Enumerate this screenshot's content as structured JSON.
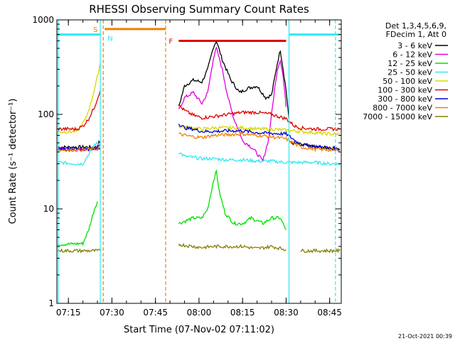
{
  "chart_data": {
    "type": "line",
    "title": "RHESSI Observing Summary Count Rates",
    "xlabel": "Start Time (07-Nov-02 07:11:02)",
    "ylabel": "Count Rate (s⁻¹ detector⁻¹)",
    "y_scale": "log",
    "ylim": [
      1,
      1000
    ],
    "xlim": [
      "07:11:02",
      "08:49:00"
    ],
    "x_ticks": [
      "07:15",
      "07:30",
      "07:45",
      "08:00",
      "08:15",
      "08:30",
      "08:45"
    ],
    "y_ticks": [
      {
        "value": 1,
        "label": "1"
      },
      {
        "value": 10,
        "label": "10"
      },
      {
        "value": 100,
        "label": "100"
      },
      {
        "value": 1000,
        "label": "1000"
      }
    ],
    "legend_header": [
      "Det 1,3,4,5,6,9,",
      "FDecim 1, Att 0"
    ],
    "legend_position": "right",
    "series": [
      {
        "name": "3 - 6 keV",
        "color": "#000000"
      },
      {
        "name": "6 - 12 keV",
        "color": "#e000e0"
      },
      {
        "name": "12 - 25 keV",
        "color": "#00e000"
      },
      {
        "name": "25 - 50 keV",
        "color": "#30e8f0"
      },
      {
        "name": "50 - 100 keV",
        "color": "#d8d800"
      },
      {
        "name": "100 - 300 keV",
        "color": "#e00000"
      },
      {
        "name": "300 - 800 keV",
        "color": "#0000d0"
      },
      {
        "name": "800 - 7000 keV",
        "color": "#f08000"
      },
      {
        "name": "7000 - 15000 keV",
        "color": "#808000"
      }
    ],
    "series_segments": [
      {
        "color": "#000000",
        "segments": [
          [
            [
              "07:11:20",
              45
            ],
            [
              "07:20",
              45
            ],
            [
              "07:25",
              45
            ],
            [
              "07:25:30",
              50
            ],
            [
              "07:26",
              52
            ]
          ],
          [
            [
              "07:53",
              120
            ],
            [
              "07:55",
              200
            ],
            [
              "07:58",
              230
            ],
            [
              "08:01",
              220
            ],
            [
              "08:03",
              300
            ],
            [
              "08:05",
              520
            ],
            [
              "08:06",
              600
            ],
            [
              "08:08",
              380
            ],
            [
              "08:11",
              230
            ],
            [
              "08:14",
              170
            ],
            [
              "08:17",
              190
            ],
            [
              "08:20",
              200
            ],
            [
              "08:23",
              150
            ],
            [
              "08:25",
              160
            ],
            [
              "08:27",
              350
            ],
            [
              "08:28",
              480
            ],
            [
              "08:29",
              300
            ],
            [
              "08:30",
              180
            ],
            [
              "08:31",
              90
            ]
          ],
          [
            [
              "08:31:30",
              50
            ],
            [
              "08:35",
              48
            ],
            [
              "08:40",
              45
            ],
            [
              "08:45",
              44
            ],
            [
              "08:48:30",
              43
            ]
          ]
        ]
      },
      {
        "color": "#e000e0",
        "segments": [
          [
            [
              "07:11:20",
              43
            ],
            [
              "07:20",
              43
            ],
            [
              "07:24",
              43
            ],
            [
              "07:26",
              48
            ]
          ],
          [
            [
              "07:53",
              110
            ],
            [
              "07:55",
              150
            ],
            [
              "07:58",
              170
            ],
            [
              "08:01",
              130
            ],
            [
              "08:03",
              170
            ],
            [
              "08:05",
              400
            ],
            [
              "08:06",
              500
            ],
            [
              "08:08",
              300
            ],
            [
              "08:10",
              150
            ],
            [
              "08:12",
              90
            ],
            [
              "08:14",
              65
            ],
            [
              "08:15",
              52
            ],
            [
              "08:17",
              48
            ],
            [
              "08:19",
              42
            ],
            [
              "08:21",
              35
            ],
            [
              "08:22",
              32
            ],
            [
              "08:24",
              55
            ],
            [
              "08:26",
              180
            ],
            [
              "08:27",
              300
            ],
            [
              "08:28",
              380
            ],
            [
              "08:29",
              250
            ],
            [
              "08:30",
              120
            ]
          ]
        ]
      },
      {
        "color": "#00e000",
        "segments": [
          [
            [
              "07:11:20",
              4.2
            ],
            [
              "07:20",
              4.3
            ],
            [
              "07:22",
              6
            ],
            [
              "07:24",
              10
            ],
            [
              "07:25",
              12
            ]
          ],
          [
            [
              "07:53",
              7
            ],
            [
              "07:58",
              8
            ],
            [
              "08:01",
              8
            ],
            [
              "08:03",
              10
            ],
            [
              "08:05",
              20
            ],
            [
              "08:06",
              25
            ],
            [
              "08:07",
              15
            ],
            [
              "08:09",
              9
            ],
            [
              "08:12",
              7
            ],
            [
              "08:15",
              7
            ],
            [
              "08:18",
              8
            ],
            [
              "08:22",
              7
            ],
            [
              "08:25",
              8
            ],
            [
              "08:28",
              8
            ],
            [
              "08:30",
              6
            ]
          ]
        ]
      },
      {
        "color": "#30e8f0",
        "segments": [
          [
            [
              "07:11:20",
              31
            ],
            [
              "07:18",
              30
            ],
            [
              "07:20",
              30
            ],
            [
              "07:22",
              38
            ],
            [
              "07:24",
              48
            ],
            [
              "07:26",
              50
            ]
          ],
          [
            [
              "07:53",
              40
            ],
            [
              "07:55",
              36
            ],
            [
              "07:58",
              35
            ],
            [
              "08:01",
              34
            ],
            [
              "08:05",
              34
            ],
            [
              "08:10",
              33
            ],
            [
              "08:15",
              33
            ],
            [
              "08:20",
              32
            ],
            [
              "08:25",
              32
            ],
            [
              "08:30",
              31
            ],
            [
              "08:35",
              31
            ],
            [
              "08:40",
              31
            ],
            [
              "08:45",
              30
            ],
            [
              "08:48:30",
              30
            ]
          ]
        ]
      },
      {
        "color": "#d8d800",
        "segments": [
          [
            [
              "07:11:20",
              65
            ],
            [
              "07:18",
              66
            ],
            [
              "07:21",
              90
            ],
            [
              "07:23",
              140
            ],
            [
              "07:25",
              250
            ],
            [
              "07:26",
              350
            ]
          ],
          [
            [
              "07:53",
              75
            ],
            [
              "07:55",
              72
            ],
            [
              "07:58",
              72
            ],
            [
              "08:01",
              70
            ],
            [
              "08:05",
              72
            ],
            [
              "08:10",
              72
            ],
            [
              "08:15",
              72
            ],
            [
              "08:20",
              70
            ],
            [
              "08:25",
              70
            ],
            [
              "08:30",
              68
            ],
            [
              "08:35",
              66
            ],
            [
              "08:40",
              64
            ],
            [
              "08:45",
              62
            ],
            [
              "08:48:30",
              62
            ]
          ]
        ]
      },
      {
        "color": "#e00000",
        "segments": [
          [
            [
              "07:11:20",
              70
            ],
            [
              "07:18",
              70
            ],
            [
              "07:20",
              75
            ],
            [
              "07:22",
              90
            ],
            [
              "07:24",
              120
            ],
            [
              "07:26",
              180
            ]
          ],
          [
            [
              "07:53",
              125
            ],
            [
              "07:55",
              110
            ],
            [
              "07:58",
              98
            ],
            [
              "08:01",
              92
            ],
            [
              "08:05",
              95
            ],
            [
              "08:10",
              100
            ],
            [
              "08:15",
              105
            ],
            [
              "08:20",
              105
            ],
            [
              "08:25",
              100
            ],
            [
              "08:30",
              90
            ],
            [
              "08:33",
              75
            ],
            [
              "08:35",
              72
            ],
            [
              "08:40",
              70
            ],
            [
              "08:45",
              70
            ],
            [
              "08:48:30",
              70
            ]
          ]
        ]
      },
      {
        "color": "#0000d0",
        "segments": [
          [
            [
              "07:11:20",
              43
            ],
            [
              "07:20",
              43
            ],
            [
              "07:25",
              43
            ],
            [
              "07:26",
              45
            ]
          ],
          [
            [
              "07:53",
              80
            ],
            [
              "07:55",
              72
            ],
            [
              "07:58",
              70
            ],
            [
              "08:01",
              66
            ],
            [
              "08:05",
              66
            ],
            [
              "08:10",
              67
            ],
            [
              "08:15",
              67
            ],
            [
              "08:20",
              64
            ],
            [
              "08:25",
              63
            ],
            [
              "08:30",
              62
            ],
            [
              "08:35",
              48
            ],
            [
              "08:40",
              46
            ],
            [
              "08:45",
              44
            ],
            [
              "08:48:30",
              43
            ]
          ]
        ]
      },
      {
        "color": "#f08000",
        "segments": [
          [
            [
              "07:11:20",
              42
            ],
            [
              "07:20",
              42
            ],
            [
              "07:25",
              43
            ],
            [
              "07:26",
              45
            ]
          ],
          [
            [
              "07:53",
              62
            ],
            [
              "07:55",
              60
            ],
            [
              "07:58",
              58
            ],
            [
              "08:01",
              57
            ],
            [
              "08:05",
              60
            ],
            [
              "08:10",
              61
            ],
            [
              "08:15",
              62
            ],
            [
              "08:20",
              60
            ],
            [
              "08:25",
              58
            ],
            [
              "08:30",
              55
            ],
            [
              "08:35",
              45
            ],
            [
              "08:40",
              43
            ],
            [
              "08:45",
              42
            ],
            [
              "08:48:30",
              42
            ]
          ]
        ]
      },
      {
        "color": "#808000",
        "segments": [
          [
            [
              "07:11:20",
              3.6
            ],
            [
              "07:15",
              3.6
            ],
            [
              "07:20",
              3.6
            ],
            [
              "07:25",
              3.6
            ],
            [
              "07:26",
              3.6
            ]
          ],
          [
            [
              "07:53",
              4.2
            ],
            [
              "07:58",
              4.0
            ],
            [
              "08:01",
              3.9
            ],
            [
              "08:05",
              4.0
            ],
            [
              "08:10",
              4.0
            ],
            [
              "08:15",
              4.0
            ],
            [
              "08:20",
              3.8
            ],
            [
              "08:25",
              4.0
            ],
            [
              "08:30",
              3.7
            ]
          ],
          [
            [
              "08:35",
              3.6
            ],
            [
              "08:40",
              3.6
            ],
            [
              "08:45",
              3.6
            ],
            [
              "08:48:30",
              3.6
            ]
          ]
        ]
      }
    ],
    "markers": [
      {
        "label": "S",
        "color": "#f08000",
        "from": "07:26:30",
        "to": "07:27:30",
        "y": 800,
        "line": false
      },
      {
        "label": "N",
        "color": "#30e8f0",
        "from": "07:27:30",
        "to": "07:48:30",
        "y": 700,
        "bar_color": "#f08000",
        "bar_y": 800
      },
      {
        "label": "F",
        "color": "#e00000",
        "from": "07:53",
        "to": "08:30",
        "y": 600
      }
    ],
    "vertical_lines": [
      {
        "time": "07:11:30",
        "color": "#30e8f0",
        "style": "solid"
      },
      {
        "time": "07:26",
        "color": "#30e8f0",
        "style": "solid"
      },
      {
        "time": "07:27",
        "color": "#f08000",
        "style": "dashed"
      },
      {
        "time": "07:48:30",
        "color": "#f08000",
        "style": "dashed"
      },
      {
        "time": "08:31",
        "color": "#30e8f0",
        "style": "solid"
      },
      {
        "time": "08:47",
        "color": "#30e8f0",
        "style": "dashed"
      }
    ],
    "eclipse_bars": [
      {
        "from": "07:11:02",
        "to": "07:26",
        "y": 700,
        "color": "#30e8f0"
      },
      {
        "from": "08:31",
        "to": "08:48:30",
        "y": 700,
        "color": "#30e8f0"
      }
    ]
  },
  "footer": {
    "timestamp": "21-Oct-2021 00:39"
  }
}
